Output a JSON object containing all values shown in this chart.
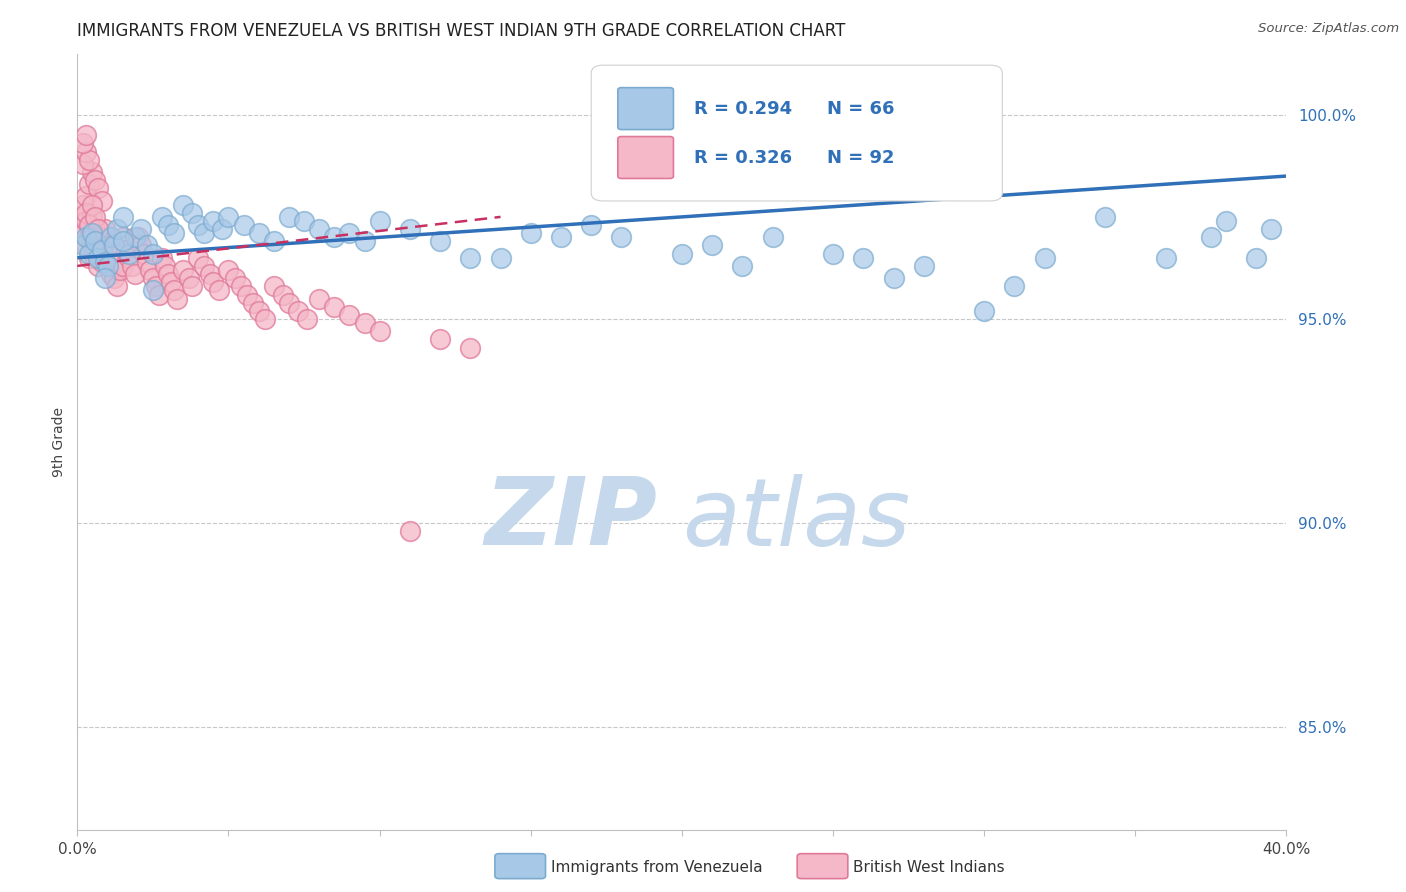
{
  "title": "IMMIGRANTS FROM VENEZUELA VS BRITISH WEST INDIAN 9TH GRADE CORRELATION CHART",
  "source": "Source: ZipAtlas.com",
  "ylabel": "9th Grade",
  "xlim": [
    0.0,
    0.4
  ],
  "ylim": [
    0.825,
    1.015
  ],
  "xtick_positions": [
    0.0,
    0.05,
    0.1,
    0.15,
    0.2,
    0.25,
    0.3,
    0.35,
    0.4
  ],
  "xticklabels": [
    "0.0%",
    "",
    "",
    "",
    "",
    "",
    "",
    "",
    "40.0%"
  ],
  "ytick_positions": [
    0.85,
    0.9,
    0.95,
    1.0
  ],
  "ytick_labels": [
    "85.0%",
    "90.0%",
    "95.0%",
    "100.0%"
  ],
  "legend_blue_label": "Immigrants from Venezuela",
  "legend_pink_label": "British West Indians",
  "R_blue": 0.294,
  "N_blue": 66,
  "R_pink": 0.326,
  "N_pink": 92,
  "blue_color": "#a8c8e8",
  "blue_edge_color": "#7aabcf",
  "pink_color": "#f4b8c8",
  "pink_edge_color": "#e07898",
  "blue_line_color": "#3070b8",
  "pink_line_color": "#c83060",
  "pink_line_style": "--",
  "watermark_zip": "ZIP",
  "watermark_atlas": "atlas",
  "watermark_color": "#d8e8f4",
  "background_color": "#ffffff",
  "title_fontsize": 12,
  "legend_R_color": "#3070b8",
  "legend_N_color": "#3070b8",
  "blue_x": [
    0.002,
    0.003,
    0.004,
    0.005,
    0.006,
    0.007,
    0.008,
    0.009,
    0.01,
    0.011,
    0.012,
    0.013,
    0.015,
    0.017,
    0.019,
    0.021,
    0.023,
    0.025,
    0.028,
    0.03,
    0.032,
    0.035,
    0.038,
    0.04,
    0.042,
    0.045,
    0.048,
    0.05,
    0.055,
    0.06,
    0.065,
    0.07,
    0.075,
    0.08,
    0.085,
    0.09,
    0.095,
    0.1,
    0.11,
    0.12,
    0.13,
    0.14,
    0.15,
    0.16,
    0.17,
    0.18,
    0.2,
    0.21,
    0.22,
    0.23,
    0.25,
    0.26,
    0.27,
    0.28,
    0.3,
    0.31,
    0.32,
    0.34,
    0.36,
    0.375,
    0.38,
    0.39,
    0.395,
    0.009,
    0.015,
    0.025
  ],
  "blue_y": [
    0.968,
    0.97,
    0.966,
    0.971,
    0.969,
    0.965,
    0.967,
    0.964,
    0.963,
    0.97,
    0.968,
    0.972,
    0.975,
    0.966,
    0.97,
    0.972,
    0.968,
    0.966,
    0.975,
    0.973,
    0.971,
    0.978,
    0.976,
    0.973,
    0.971,
    0.974,
    0.972,
    0.975,
    0.973,
    0.971,
    0.969,
    0.975,
    0.974,
    0.972,
    0.97,
    0.971,
    0.969,
    0.974,
    0.972,
    0.969,
    0.965,
    0.965,
    0.971,
    0.97,
    0.973,
    0.97,
    0.966,
    0.968,
    0.963,
    0.97,
    0.966,
    0.965,
    0.96,
    0.963,
    0.952,
    0.958,
    0.965,
    0.975,
    0.965,
    0.97,
    0.974,
    0.965,
    0.972,
    0.96,
    0.969,
    0.957
  ],
  "pink_x": [
    0.001,
    0.002,
    0.002,
    0.003,
    0.003,
    0.004,
    0.004,
    0.005,
    0.005,
    0.006,
    0.006,
    0.007,
    0.007,
    0.008,
    0.008,
    0.009,
    0.009,
    0.01,
    0.01,
    0.011,
    0.011,
    0.012,
    0.012,
    0.013,
    0.013,
    0.014,
    0.015,
    0.015,
    0.016,
    0.017,
    0.018,
    0.019,
    0.02,
    0.021,
    0.022,
    0.023,
    0.024,
    0.025,
    0.026,
    0.027,
    0.028,
    0.029,
    0.03,
    0.031,
    0.032,
    0.033,
    0.035,
    0.037,
    0.038,
    0.04,
    0.042,
    0.044,
    0.045,
    0.047,
    0.05,
    0.052,
    0.054,
    0.056,
    0.058,
    0.06,
    0.062,
    0.065,
    0.068,
    0.07,
    0.073,
    0.076,
    0.08,
    0.085,
    0.09,
    0.095,
    0.1,
    0.11,
    0.12,
    0.13,
    0.003,
    0.004,
    0.005,
    0.006,
    0.007,
    0.008,
    0.003,
    0.004,
    0.005,
    0.006,
    0.002,
    0.003,
    0.004,
    0.002,
    0.003,
    0.005,
    0.006,
    0.007
  ],
  "pink_y": [
    0.975,
    0.978,
    0.971,
    0.974,
    0.968,
    0.97,
    0.965,
    0.975,
    0.968,
    0.972,
    0.965,
    0.969,
    0.963,
    0.97,
    0.964,
    0.972,
    0.966,
    0.97,
    0.963,
    0.968,
    0.961,
    0.966,
    0.96,
    0.964,
    0.958,
    0.962,
    0.97,
    0.963,
    0.967,
    0.965,
    0.963,
    0.961,
    0.97,
    0.968,
    0.966,
    0.964,
    0.962,
    0.96,
    0.958,
    0.956,
    0.965,
    0.963,
    0.961,
    0.959,
    0.957,
    0.955,
    0.962,
    0.96,
    0.958,
    0.965,
    0.963,
    0.961,
    0.959,
    0.957,
    0.962,
    0.96,
    0.958,
    0.956,
    0.954,
    0.952,
    0.95,
    0.958,
    0.956,
    0.954,
    0.952,
    0.95,
    0.955,
    0.953,
    0.951,
    0.949,
    0.947,
    0.898,
    0.945,
    0.943,
    0.98,
    0.983,
    0.986,
    0.984,
    0.982,
    0.979,
    0.976,
    0.973,
    0.97,
    0.967,
    0.988,
    0.991,
    0.989,
    0.993,
    0.995,
    0.978,
    0.975,
    0.972
  ]
}
